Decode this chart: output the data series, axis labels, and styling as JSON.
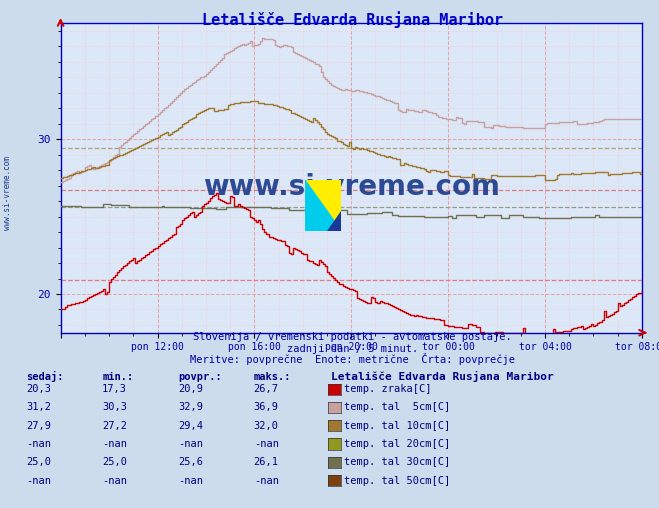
{
  "title": "Letališče Edvarda Rusjana Maribor",
  "bg_color": "#ccdcec",
  "plot_bg_color": "#dce8f8",
  "subtitle1": "Slovenija / vremenski podatki - avtomatske postaje.",
  "subtitle2": "zadnji dan / 5 minut.",
  "subtitle3": "Meritve: povprečne  Enote: metrične  Črta: povprečje",
  "xlabel_ticks": [
    "pon 12:00",
    "pon 16:00",
    "pon 20:00",
    "tor 00:00",
    "tor 04:00",
    "tor 08:00"
  ],
  "ylim": [
    17.5,
    37.5
  ],
  "xlim": [
    0,
    288
  ],
  "n_points": 289,
  "colors": {
    "zraka": "#cc0000",
    "tal5": "#c8a0a0",
    "tal10": "#a07830",
    "tal30": "#707050",
    "grid_major": "#ee8888",
    "grid_minor": "#ffbbbb"
  },
  "dashed_lines": {
    "zraka_min": 17.3,
    "zraka_avg": 20.9,
    "zraka_max": 26.7,
    "tal10_avg": 29.4,
    "tal30_avg": 25.6
  },
  "watermark_text": "www.si-vreme.com",
  "watermark_color": "#1a3a8a",
  "table_color": "#000080",
  "series_table": [
    {
      "sedaj": "20,3",
      "min": "17,3",
      "povpr": "20,9",
      "maks": "26,7",
      "color": "#cc0000",
      "label": "temp. zraka[C]"
    },
    {
      "sedaj": "31,2",
      "min": "30,3",
      "povpr": "32,9",
      "maks": "36,9",
      "color": "#c8a0a0",
      "label": "temp. tal  5cm[C]"
    },
    {
      "sedaj": "27,9",
      "min": "27,2",
      "povpr": "29,4",
      "maks": "32,0",
      "color": "#a07830",
      "label": "temp. tal 10cm[C]"
    },
    {
      "sedaj": "-nan",
      "min": "-nan",
      "povpr": "-nan",
      "maks": "-nan",
      "color": "#909820",
      "label": "temp. tal 20cm[C]"
    },
    {
      "sedaj": "25,0",
      "min": "25,0",
      "povpr": "25,6",
      "maks": "26,1",
      "color": "#707050",
      "label": "temp. tal 30cm[C]"
    },
    {
      "sedaj": "-nan",
      "min": "-nan",
      "povpr": "-nan",
      "maks": "-nan",
      "color": "#7a4010",
      "label": "temp. tal 50cm[C]"
    }
  ]
}
